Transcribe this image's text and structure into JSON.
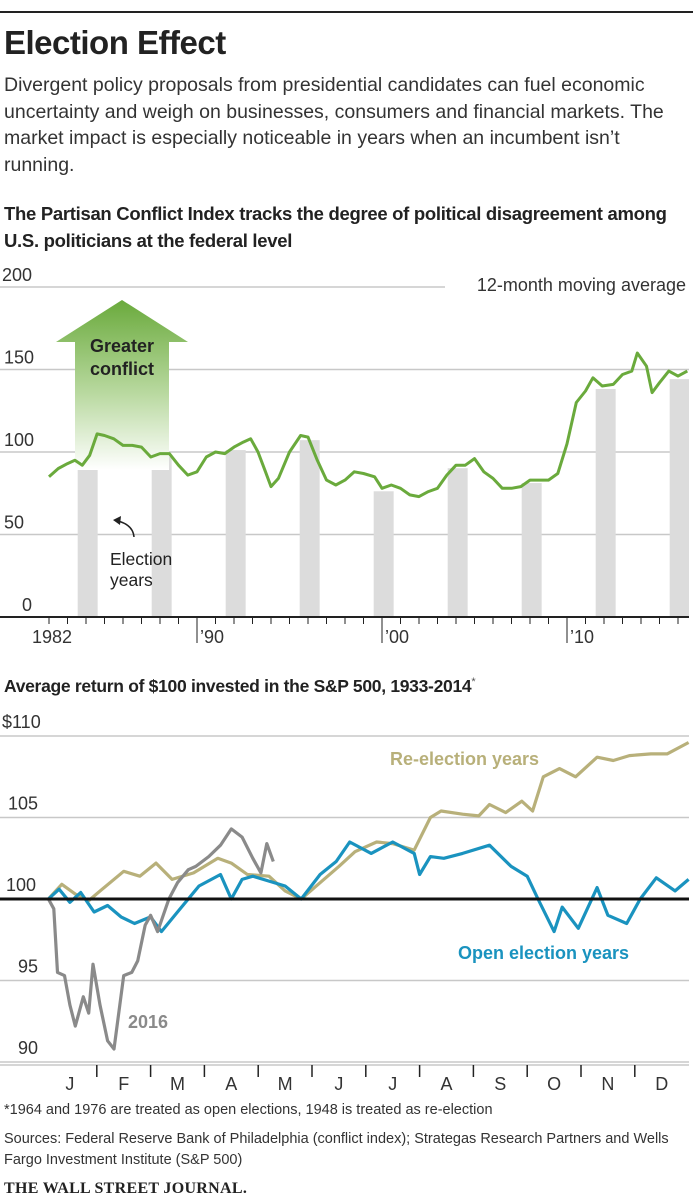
{
  "header": {
    "title": "Election Effect",
    "dek": "Divergent policy proposals from presidential candidates can fuel economic uncertainty and weigh on businesses, consumers and financial markets. The market impact is especially noticeable in years when an incumbent isn’t running.",
    "footnote": "*1964 and 1976 are treated as open elections, 1948 is treated as re-election",
    "sources": "Sources: Federal Reserve Bank of Philadelphia (conflict index); Strategas Research Partners and Wells Fargo Investment Institute (S&P 500)",
    "publisher": "THE WALL STREET JOURNAL."
  },
  "colors": {
    "conflict": "#6aaa3c",
    "reelection": "#b8b07a",
    "open": "#1a93bf",
    "y2016": "#8a8a8a",
    "bars": "#dcdcdc"
  },
  "chart_data": [
    {
      "type": "line",
      "title": "The Partisan Conflict Index tracks the degree of political disagreement among U.S. politicians at the federal level",
      "note": "12-month moving average",
      "annotation_arrow": "Greater conflict",
      "annotation_bars": "Election years",
      "ylim": [
        0,
        200
      ],
      "yticks": [
        "0",
        "50",
        "100",
        "150",
        "200"
      ],
      "xlim": [
        1982,
        2016.6
      ],
      "xticks": [
        {
          "v": 1982,
          "label": "1982"
        },
        {
          "v": 1990,
          "label": "’90"
        },
        {
          "v": 2000,
          "label": "’00"
        },
        {
          "v": 2010,
          "label": "’10"
        }
      ],
      "election_years": [
        1984,
        1988,
        1992,
        1996,
        2000,
        2004,
        2008,
        2012,
        2016
      ],
      "series": [
        {
          "name": "Partisan Conflict Index",
          "points": [
            [
              1982,
              85
            ],
            [
              1982.5,
              90
            ],
            [
              1983,
              93
            ],
            [
              1983.4,
              95
            ],
            [
              1983.8,
              92
            ],
            [
              1984.2,
              98
            ],
            [
              1984.6,
              111
            ],
            [
              1985,
              110
            ],
            [
              1985.5,
              108
            ],
            [
              1986,
              104
            ],
            [
              1986.5,
              104
            ],
            [
              1987,
              103
            ],
            [
              1987.5,
              97
            ],
            [
              1988,
              99
            ],
            [
              1988.5,
              99
            ],
            [
              1989,
              92
            ],
            [
              1989.5,
              86
            ],
            [
              1990,
              88
            ],
            [
              1990.5,
              97
            ],
            [
              1991,
              100
            ],
            [
              1991.5,
              99
            ],
            [
              1992,
              103
            ],
            [
              1992.5,
              106
            ],
            [
              1992.9,
              108
            ],
            [
              1993.3,
              100
            ],
            [
              1993.7,
              88
            ],
            [
              1994,
              79
            ],
            [
              1994.4,
              84
            ],
            [
              1995,
              100
            ],
            [
              1995.6,
              110
            ],
            [
              1996,
              109
            ],
            [
              1996.5,
              95
            ],
            [
              1997,
              83
            ],
            [
              1997.5,
              80
            ],
            [
              1998,
              83
            ],
            [
              1998.5,
              88
            ],
            [
              1999,
              87
            ],
            [
              1999.6,
              85
            ],
            [
              2000,
              78
            ],
            [
              2000.5,
              80
            ],
            [
              2001,
              78
            ],
            [
              2001.5,
              74
            ],
            [
              2002,
              73
            ],
            [
              2002.5,
              76
            ],
            [
              2003,
              78
            ],
            [
              2003.5,
              86
            ],
            [
              2004,
              92
            ],
            [
              2004.5,
              92
            ],
            [
              2005,
              96
            ],
            [
              2005.5,
              88
            ],
            [
              2006,
              84
            ],
            [
              2006.5,
              78
            ],
            [
              2007,
              78
            ],
            [
              2007.5,
              79
            ],
            [
              2008,
              83
            ],
            [
              2008.5,
              83
            ],
            [
              2009,
              83
            ],
            [
              2009.5,
              87
            ],
            [
              2010,
              105
            ],
            [
              2010.5,
              130
            ],
            [
              2011,
              137
            ],
            [
              2011.4,
              145
            ],
            [
              2011.9,
              140
            ],
            [
              2012.5,
              141
            ],
            [
              2013,
              147
            ],
            [
              2013.5,
              149
            ],
            [
              2013.8,
              160
            ],
            [
              2014.3,
              152
            ],
            [
              2014.6,
              136
            ],
            [
              2015,
              142
            ],
            [
              2015.5,
              149
            ],
            [
              2016,
              146
            ],
            [
              2016.5,
              149
            ]
          ]
        }
      ]
    },
    {
      "type": "line",
      "title": "Average return of $100 invested in the S&P 500, 1933-2014",
      "title_mark": "*",
      "ylim": [
        90,
        110
      ],
      "yticks": [
        "90",
        "95",
        "100",
        "105",
        "$110"
      ],
      "baseline": 100,
      "xlim": [
        0,
        12
      ],
      "categories": [
        "J",
        "F",
        "M",
        "A",
        "M",
        "J",
        "J",
        "A",
        "S",
        "O",
        "N",
        "D"
      ],
      "series": [
        {
          "name": "Re-election years",
          "points": [
            [
              0.1,
              100
            ],
            [
              0.35,
              100.9
            ],
            [
              0.6,
              100.3
            ],
            [
              0.85,
              99.9
            ],
            [
              1.1,
              100.6
            ],
            [
              1.5,
              101.7
            ],
            [
              1.8,
              101.4
            ],
            [
              2.1,
              102.2
            ],
            [
              2.4,
              101.2
            ],
            [
              2.8,
              101.6
            ],
            [
              3.25,
              102.5
            ],
            [
              3.5,
              102.2
            ],
            [
              3.8,
              101.5
            ],
            [
              4.2,
              101.4
            ],
            [
              4.5,
              100.5
            ],
            [
              4.8,
              100
            ],
            [
              5.15,
              101
            ],
            [
              5.5,
              102
            ],
            [
              5.8,
              102.9
            ],
            [
              6.2,
              103.5
            ],
            [
              6.5,
              103.4
            ],
            [
              6.9,
              103
            ],
            [
              7.2,
              105
            ],
            [
              7.4,
              105.4
            ],
            [
              7.8,
              105.2
            ],
            [
              8.1,
              105.1
            ],
            [
              8.3,
              105.8
            ],
            [
              8.6,
              105.3
            ],
            [
              8.9,
              106
            ],
            [
              9.1,
              105.4
            ],
            [
              9.3,
              107.5
            ],
            [
              9.6,
              108
            ],
            [
              9.9,
              107.5
            ],
            [
              10.3,
              108.7
            ],
            [
              10.6,
              108.5
            ],
            [
              10.9,
              108.8
            ],
            [
              11.3,
              108.9
            ],
            [
              11.6,
              108.9
            ],
            [
              12,
              109.6
            ]
          ]
        },
        {
          "name": "Open election years",
          "points": [
            [
              0.1,
              100
            ],
            [
              0.3,
              100.6
            ],
            [
              0.5,
              99.8
            ],
            [
              0.7,
              100.4
            ],
            [
              0.95,
              99.2
            ],
            [
              1.2,
              99.6
            ],
            [
              1.45,
              98.9
            ],
            [
              1.7,
              98.5
            ],
            [
              2.0,
              98.9
            ],
            [
              2.2,
              98
            ],
            [
              2.5,
              99.2
            ],
            [
              2.9,
              100.8
            ],
            [
              3.3,
              101.5
            ],
            [
              3.5,
              100
            ],
            [
              3.7,
              101.2
            ],
            [
              3.9,
              101.4
            ],
            [
              4.2,
              101.1
            ],
            [
              4.5,
              100.8
            ],
            [
              4.8,
              100
            ],
            [
              5.15,
              101.5
            ],
            [
              5.45,
              102.3
            ],
            [
              5.7,
              103.5
            ],
            [
              6.1,
              102.8
            ],
            [
              6.5,
              103.5
            ],
            [
              6.9,
              102.8
            ],
            [
              7.0,
              101.5
            ],
            [
              7.2,
              102.6
            ],
            [
              7.45,
              102.5
            ],
            [
              7.8,
              102.8
            ],
            [
              8.3,
              103.3
            ],
            [
              8.7,
              102
            ],
            [
              9.0,
              101.4
            ],
            [
              9.2,
              100
            ],
            [
              9.5,
              98
            ],
            [
              9.65,
              99.5
            ],
            [
              9.95,
              98.2
            ],
            [
              10.3,
              100.7
            ],
            [
              10.5,
              99
            ],
            [
              10.85,
              98.5
            ],
            [
              11.1,
              100
            ],
            [
              11.4,
              101.3
            ],
            [
              11.75,
              100.5
            ],
            [
              12,
              101.2
            ]
          ]
        },
        {
          "name": "2016",
          "points": [
            [
              0.1,
              100
            ],
            [
              0.2,
              99.4
            ],
            [
              0.27,
              95.5
            ],
            [
              0.4,
              95.3
            ],
            [
              0.5,
              93.5
            ],
            [
              0.6,
              92.2
            ],
            [
              0.75,
              94
            ],
            [
              0.85,
              93
            ],
            [
              0.93,
              96
            ],
            [
              1.06,
              93.5
            ],
            [
              1.2,
              91.3
            ],
            [
              1.32,
              90.8
            ],
            [
              1.5,
              95.3
            ],
            [
              1.65,
              95.5
            ],
            [
              1.76,
              96.2
            ],
            [
              1.9,
              98.4
            ],
            [
              2.0,
              99
            ],
            [
              2.13,
              98
            ],
            [
              2.34,
              100
            ],
            [
              2.5,
              101
            ],
            [
              2.7,
              101.8
            ],
            [
              2.84,
              102
            ],
            [
              3.08,
              102.6
            ],
            [
              3.3,
              103.3
            ],
            [
              3.5,
              104.3
            ],
            [
              3.7,
              103.8
            ],
            [
              3.9,
              102.5
            ],
            [
              4.05,
              101.6
            ],
            [
              4.16,
              103.4
            ],
            [
              4.28,
              102.3
            ]
          ]
        }
      ],
      "labels": {
        "reelection": "Re-election years",
        "open": "Open election years",
        "y2016": "2016"
      }
    }
  ]
}
